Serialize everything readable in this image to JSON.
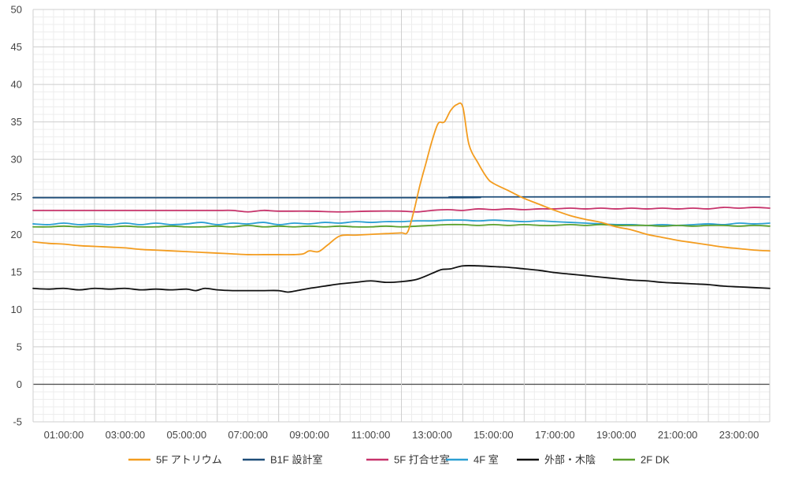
{
  "chart_data": {
    "type": "line",
    "title": "",
    "xlabel": "",
    "ylabel": "",
    "xlim": [
      0,
      24
    ],
    "ylim": [
      -5,
      50
    ],
    "yticks": [
      -5,
      0,
      5,
      10,
      15,
      20,
      25,
      30,
      35,
      40,
      45,
      50
    ],
    "xtick_values": [
      1,
      3,
      5,
      7,
      9,
      11,
      13,
      15,
      17,
      19,
      21,
      23
    ],
    "xtick_labels": [
      "01:00:00",
      "03:00:00",
      "05:00:00",
      "07:00:00",
      "09:00:00",
      "11:00:00",
      "13:00:00",
      "15:00:00",
      "17:00:00",
      "19:00:00",
      "21:00:00",
      "23:00:00"
    ],
    "grid": true,
    "legend_position": "bottom",
    "series": [
      {
        "name": "5F アトリウム",
        "color": "#f39c1f",
        "x": [
          0,
          0.5,
          1,
          1.5,
          2,
          2.5,
          3,
          3.5,
          4,
          4.5,
          5,
          5.5,
          6,
          6.5,
          7,
          7.5,
          8,
          8.5,
          8.8,
          9,
          9.3,
          9.6,
          10,
          10.5,
          11,
          11.5,
          12,
          12.2,
          12.4,
          12.6,
          12.8,
          13,
          13.2,
          13.4,
          13.6,
          13.8,
          14,
          14.2,
          14.5,
          14.8,
          15,
          15.5,
          16,
          16.5,
          17,
          17.5,
          18,
          18.5,
          19,
          19.5,
          20,
          20.5,
          21,
          21.5,
          22,
          22.5,
          23,
          23.5,
          24
        ],
        "y": [
          19.0,
          18.8,
          18.7,
          18.5,
          18.4,
          18.3,
          18.2,
          18.0,
          17.9,
          17.8,
          17.7,
          17.6,
          17.5,
          17.4,
          17.3,
          17.3,
          17.3,
          17.3,
          17.4,
          17.8,
          17.7,
          18.6,
          19.8,
          19.9,
          20.0,
          20.1,
          20.2,
          20.3,
          23.0,
          26.5,
          29.5,
          32.5,
          34.8,
          35.0,
          36.5,
          37.3,
          37.0,
          32.0,
          29.5,
          27.5,
          26.8,
          25.8,
          24.8,
          24.0,
          23.2,
          22.5,
          22.0,
          21.6,
          21.0,
          20.6,
          20.0,
          19.6,
          19.2,
          18.9,
          18.6,
          18.3,
          18.1,
          17.9,
          17.8
        ]
      },
      {
        "name": "B1F 設計室",
        "color": "#1f4e79",
        "x": [
          0,
          13.8,
          14,
          24
        ],
        "y": [
          24.9,
          24.9,
          25.0,
          25.0
        ]
      },
      {
        "name": "5F 打合せ室",
        "color": "#c7336b",
        "x": [
          0,
          2,
          4,
          6,
          6.5,
          7,
          7.5,
          8,
          9,
          10,
          11,
          12,
          12.5,
          13,
          13.5,
          14,
          14.5,
          15,
          15.5,
          16,
          16.5,
          17,
          17.5,
          18,
          18.5,
          19,
          19.5,
          20,
          20.5,
          21,
          21.5,
          22,
          22.5,
          23,
          23.5,
          24
        ],
        "y": [
          23.2,
          23.2,
          23.2,
          23.2,
          23.2,
          23.0,
          23.2,
          23.1,
          23.1,
          23.0,
          23.1,
          23.1,
          23.0,
          23.2,
          23.3,
          23.2,
          23.4,
          23.3,
          23.4,
          23.3,
          23.4,
          23.4,
          23.5,
          23.4,
          23.5,
          23.4,
          23.5,
          23.4,
          23.5,
          23.4,
          23.5,
          23.4,
          23.6,
          23.5,
          23.6,
          23.5
        ]
      },
      {
        "name": "4F 室",
        "color": "#2b9fd3",
        "x": [
          0,
          0.5,
          1,
          1.5,
          2,
          2.5,
          3,
          3.5,
          4,
          4.5,
          5,
          5.5,
          6,
          6.5,
          7,
          7.5,
          8,
          8.5,
          9,
          9.5,
          10,
          10.5,
          11,
          11.5,
          12,
          12.5,
          13,
          13.5,
          14,
          14.5,
          15,
          15.5,
          16,
          16.5,
          17,
          17.5,
          18,
          18.5,
          19,
          19.5,
          20,
          20.5,
          21,
          21.5,
          22,
          22.5,
          23,
          23.5,
          24
        ],
        "y": [
          21.4,
          21.3,
          21.5,
          21.3,
          21.4,
          21.3,
          21.5,
          21.3,
          21.5,
          21.3,
          21.4,
          21.6,
          21.3,
          21.5,
          21.4,
          21.6,
          21.3,
          21.5,
          21.4,
          21.6,
          21.5,
          21.7,
          21.6,
          21.7,
          21.7,
          21.8,
          21.8,
          21.9,
          21.9,
          21.8,
          21.9,
          21.8,
          21.7,
          21.8,
          21.7,
          21.6,
          21.5,
          21.4,
          21.3,
          21.3,
          21.2,
          21.3,
          21.2,
          21.3,
          21.4,
          21.3,
          21.5,
          21.4,
          21.5
        ]
      },
      {
        "name": "外部・木陰",
        "color": "#111111",
        "x": [
          0,
          0.5,
          1,
          1.5,
          2,
          2.5,
          3,
          3.5,
          4,
          4.5,
          5,
          5.3,
          5.6,
          6,
          6.5,
          7,
          7.5,
          8,
          8.3,
          8.6,
          9,
          9.5,
          10,
          10.5,
          11,
          11.5,
          12,
          12.5,
          13,
          13.3,
          13.6,
          14,
          14.5,
          15,
          15.5,
          16,
          16.5,
          17,
          17.5,
          18,
          18.5,
          19,
          19.5,
          20,
          20.5,
          21,
          21.5,
          22,
          22.5,
          23,
          23.5,
          24
        ],
        "y": [
          12.8,
          12.7,
          12.8,
          12.6,
          12.8,
          12.7,
          12.8,
          12.6,
          12.7,
          12.6,
          12.7,
          12.5,
          12.8,
          12.6,
          12.5,
          12.5,
          12.5,
          12.5,
          12.3,
          12.5,
          12.8,
          13.1,
          13.4,
          13.6,
          13.8,
          13.6,
          13.7,
          14.0,
          14.8,
          15.3,
          15.4,
          15.8,
          15.8,
          15.7,
          15.6,
          15.4,
          15.2,
          14.9,
          14.7,
          14.5,
          14.3,
          14.1,
          13.9,
          13.8,
          13.6,
          13.5,
          13.4,
          13.3,
          13.1,
          13.0,
          12.9,
          12.8
        ]
      },
      {
        "name": "2F DK",
        "color": "#5aa02c",
        "x": [
          0,
          0.5,
          1,
          1.5,
          2,
          2.5,
          3,
          3.5,
          4,
          4.5,
          5,
          5.5,
          6,
          6.5,
          7,
          7.5,
          8,
          8.5,
          9,
          9.5,
          10,
          10.5,
          11,
          11.5,
          12,
          12.5,
          13,
          13.5,
          14,
          14.5,
          15,
          15.5,
          16,
          16.5,
          17,
          17.5,
          18,
          18.5,
          19,
          19.5,
          20,
          20.5,
          21,
          21.5,
          22,
          22.5,
          23,
          23.5,
          24
        ],
        "y": [
          21.0,
          21.0,
          21.1,
          21.0,
          21.1,
          21.0,
          21.1,
          21.0,
          21.0,
          21.1,
          21.0,
          21.0,
          21.1,
          21.0,
          21.2,
          21.0,
          21.1,
          21.0,
          21.1,
          21.0,
          21.1,
          21.0,
          21.0,
          21.1,
          21.0,
          21.1,
          21.2,
          21.3,
          21.3,
          21.2,
          21.3,
          21.2,
          21.3,
          21.2,
          21.2,
          21.3,
          21.2,
          21.3,
          21.2,
          21.2,
          21.2,
          21.1,
          21.2,
          21.1,
          21.2,
          21.2,
          21.1,
          21.2,
          21.1
        ]
      }
    ]
  }
}
